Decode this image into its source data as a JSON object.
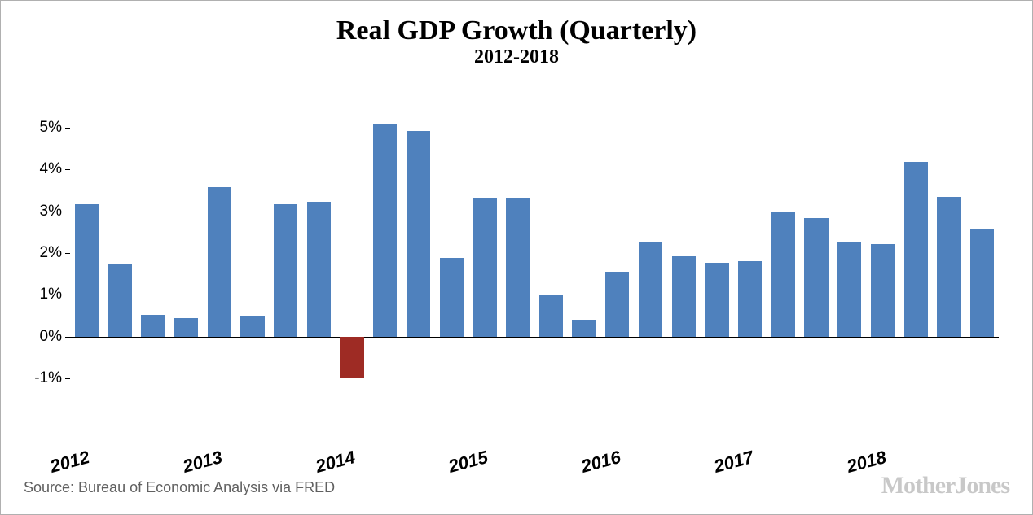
{
  "chart": {
    "type": "bar",
    "title": "Real GDP Growth (Quarterly)",
    "title_fontsize": 34,
    "subtitle": "2012-2018",
    "subtitle_fontsize": 24,
    "background_color": "#ffffff",
    "border_color": "#b0b0b0",
    "yaxis": {
      "min": -1.5,
      "max": 5.5,
      "ticks": [
        -1,
        0,
        1,
        2,
        3,
        4,
        5
      ],
      "tick_labels": [
        "-1%",
        "0%",
        "1%",
        "2%",
        "3%",
        "4%",
        "5%"
      ],
      "label_fontsize": 19,
      "label_color": "#000000",
      "zero_line_color": "#000000"
    },
    "xaxis": {
      "year_labels": [
        "2012",
        "2013",
        "2014",
        "2015",
        "2016",
        "2017",
        "2018"
      ],
      "label_fontsize": 22,
      "label_color": "#000000",
      "label_rotation_deg": -15
    },
    "bars": {
      "width_fraction": 0.72,
      "positive_color": "#4f81bd",
      "negative_color": "#9e2b24",
      "values": [
        3.17,
        1.73,
        0.53,
        0.45,
        3.58,
        0.48,
        3.17,
        3.23,
        -1.0,
        5.1,
        4.92,
        1.88,
        3.33,
        3.33,
        0.98,
        0.4,
        1.55,
        2.28,
        1.93,
        1.77,
        1.8,
        3.0,
        2.83,
        2.28,
        2.22,
        4.17,
        3.35,
        2.58
      ]
    },
    "source_text": "Source: Bureau of Economic Analysis via FRED",
    "source_fontsize": 18,
    "source_color": "#606060",
    "logo_text": "MotherJones",
    "logo_fontsize": 30,
    "logo_color": "#c8c8c8"
  }
}
